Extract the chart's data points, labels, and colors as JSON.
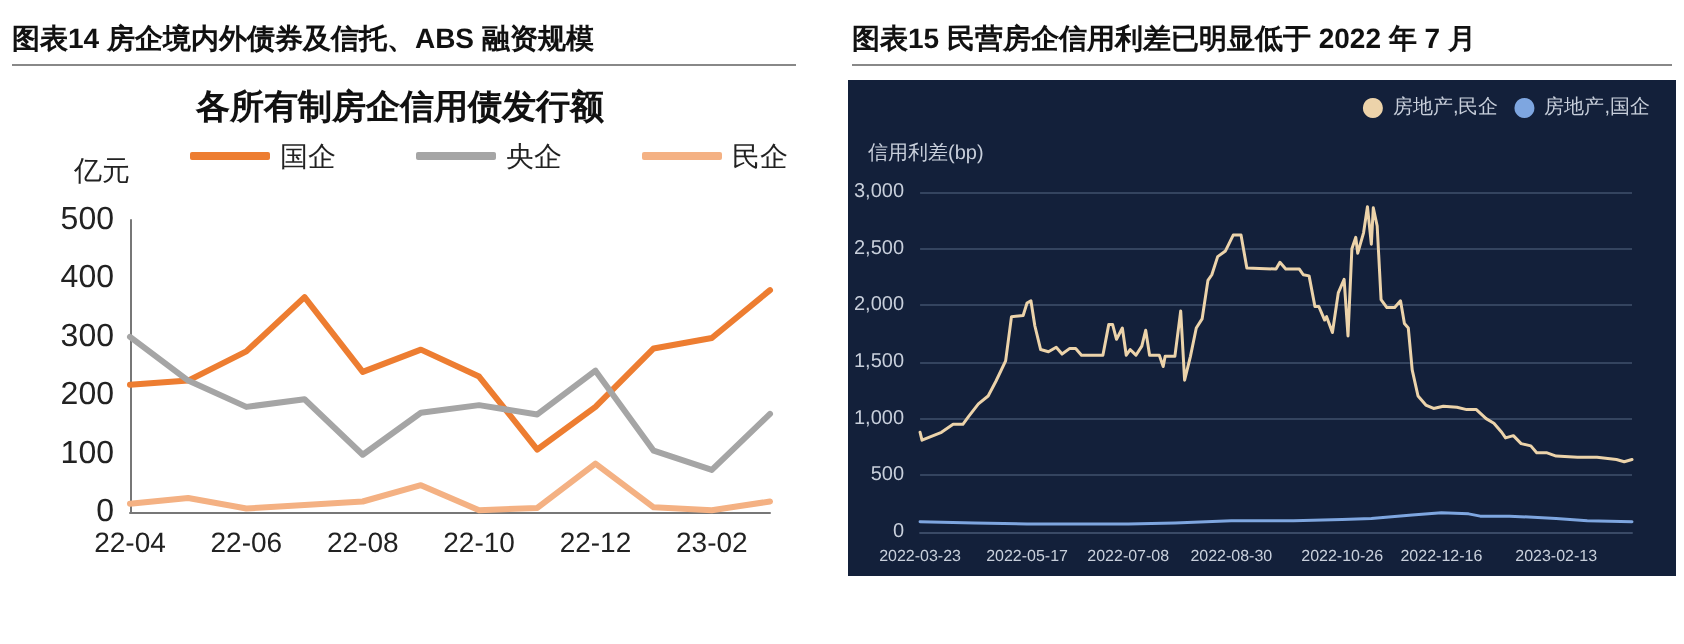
{
  "chart_data": [
    {
      "type": "line",
      "title": "图表14 房企境内外债券及信托、ABS 融资规模",
      "subtitle": "各所有制房企信用债发行额",
      "ylabel": "亿元",
      "categories": [
        "22-04",
        null,
        "22-06",
        null,
        "22-08",
        null,
        "22-10",
        null,
        "22-12",
        null,
        "23-02",
        null
      ],
      "series": [
        {
          "name": "国企",
          "color": "#ed7d31",
          "values": [
            218,
            225,
            275,
            368,
            240,
            278,
            232,
            107,
            180,
            280,
            298,
            380
          ]
        },
        {
          "name": "央企",
          "color": "#a5a5a5",
          "values": [
            300,
            225,
            180,
            193,
            98,
            170,
            183,
            167,
            242,
            105,
            72,
            168
          ]
        },
        {
          "name": "民企",
          "color": "#f4b183",
          "values": [
            14,
            24,
            6,
            12,
            18,
            46,
            3,
            7,
            83,
            8,
            3,
            18
          ]
        }
      ],
      "ylim": [
        0,
        500
      ],
      "yticks": [
        0,
        100,
        200,
        300,
        400,
        500
      ],
      "grid": false,
      "legend": "top",
      "marker": "none"
    },
    {
      "type": "line",
      "title": "图表15 民营房企信用利差已明显低于 2022 年 7 月",
      "ylabel": "信用利差(bp)",
      "series": [
        {
          "name": "房地产,民企",
          "color": "#ecd3aa",
          "x": [
            "2022-03-23",
            "2022-03-24",
            "2022-04-03",
            "2022-04-09",
            "2022-04-14",
            "2022-04-17",
            "2022-04-22",
            "2022-04-27",
            "2022-05-01",
            "2022-05-06",
            "2022-05-09",
            "2022-05-15",
            "2022-05-17",
            "2022-05-19",
            "2022-05-21",
            "2022-05-24",
            "2022-05-28",
            "2022-06-01",
            "2022-06-04",
            "2022-06-08",
            "2022-06-11",
            "2022-06-14",
            "2022-06-25",
            "2022-06-28",
            "2022-06-30",
            "2022-07-02",
            "2022-07-05",
            "2022-07-07",
            "2022-07-09",
            "2022-07-12",
            "2022-07-15",
            "2022-07-17",
            "2022-07-19",
            "2022-07-24",
            "2022-07-26",
            "2022-07-27",
            "2022-08-01",
            "2022-08-04",
            "2022-08-06",
            "2022-08-09",
            "2022-08-12",
            "2022-08-15",
            "2022-08-18",
            "2022-08-20",
            "2022-08-23",
            "2022-08-27",
            "2022-08-31",
            "2022-09-04",
            "2022-09-07",
            "2022-09-22",
            "2022-09-24",
            "2022-09-27",
            "2022-10-04",
            "2022-10-06",
            "2022-10-09",
            "2022-10-12",
            "2022-10-14",
            "2022-10-17",
            "2022-10-18",
            "2022-10-21",
            "2022-10-24",
            "2022-10-27",
            "2022-10-29",
            "2022-10-31",
            "2022-11-02",
            "2022-11-03",
            "2022-11-06",
            "2022-11-08",
            "2022-11-10",
            "2022-11-11",
            "2022-11-13",
            "2022-11-15",
            "2022-11-18",
            "2022-11-22",
            "2022-11-25",
            "2022-11-27",
            "2022-11-29",
            "2022-12-01",
            "2022-12-04",
            "2022-12-08",
            "2022-12-12",
            "2022-12-17",
            "2022-12-24",
            "2022-12-29",
            "2023-01-03",
            "2023-01-08",
            "2023-01-12",
            "2023-01-16",
            "2023-01-18",
            "2023-01-22",
            "2023-01-26",
            "2023-01-31",
            "2023-02-03",
            "2023-02-08",
            "2023-02-13",
            "2023-02-24",
            "2023-03-06",
            "2023-03-16",
            "2023-03-20",
            "2023-03-24"
          ],
          "values": [
            880,
            810,
            880,
            950,
            950,
            1020,
            1130,
            1200,
            1330,
            1510,
            1900,
            1910,
            2020,
            2040,
            1820,
            1610,
            1590,
            1630,
            1570,
            1620,
            1620,
            1560,
            1560,
            1830,
            1830,
            1700,
            1800,
            1560,
            1610,
            1560,
            1640,
            1780,
            1560,
            1560,
            1460,
            1550,
            1550,
            1950,
            1340,
            1550,
            1800,
            1880,
            2220,
            2270,
            2430,
            2480,
            2620,
            2620,
            2330,
            2320,
            2380,
            2320,
            2320,
            2270,
            2260,
            1990,
            1990,
            1870,
            1900,
            1760,
            2110,
            2230,
            1730,
            2500,
            2600,
            2460,
            2640,
            2870,
            2540,
            2860,
            2700,
            2050,
            1980,
            1980,
            2040,
            1840,
            1800,
            1430,
            1200,
            1120,
            1090,
            1110,
            1100,
            1080,
            1080,
            1000,
            960,
            880,
            830,
            850,
            780,
            760,
            700,
            700,
            670,
            660,
            660,
            640,
            620,
            640
          ]
        },
        {
          "name": "房地产,国企",
          "color": "#7ea6e0",
          "x": [
            "2022-03-23",
            "2022-04-20",
            "2022-05-17",
            "2022-07-08",
            "2022-08-01",
            "2022-08-30",
            "2022-10-01",
            "2022-10-26",
            "2022-11-10",
            "2022-12-01",
            "2022-12-16",
            "2022-12-30",
            "2023-01-05",
            "2023-01-20",
            "2023-02-13",
            "2023-03-01",
            "2023-03-24"
          ],
          "values": [
            90,
            80,
            70,
            70,
            80,
            100,
            100,
            110,
            120,
            150,
            170,
            160,
            140,
            140,
            120,
            100,
            90
          ]
        }
      ],
      "xlim": [
        "2022-03-23",
        "2023-03-24"
      ],
      "xticks": [
        "2022-03-23",
        "2022-05-17",
        "2022-07-08",
        "2022-08-30",
        "2022-10-26",
        "2022-12-16",
        "2023-02-13"
      ],
      "ylim": [
        0,
        3000
      ],
      "yticks": [
        0,
        {
          "value": 500,
          "label": "500"
        },
        {
          "value": 1000,
          "label": "1,000"
        },
        {
          "value": 1500,
          "label": "1,500"
        },
        {
          "value": 2000,
          "label": "2,000"
        },
        {
          "value": 2500,
          "label": "2,500"
        },
        {
          "value": 3000,
          "label": "3,000"
        }
      ],
      "grid": "y",
      "legend": "top right",
      "marker": "none"
    }
  ]
}
